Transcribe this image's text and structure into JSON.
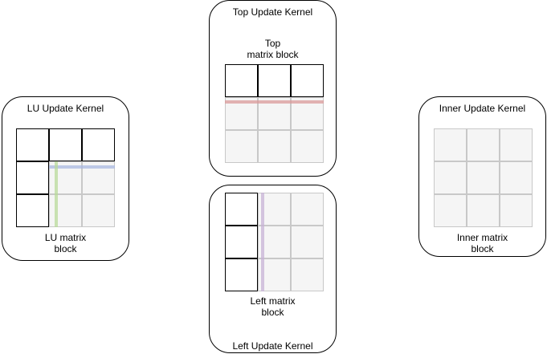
{
  "panels": {
    "lu": {
      "title": "LU Update Kernel",
      "label": "LU matrix\nblock"
    },
    "top": {
      "title": "Top Update Kernel",
      "label": "Top\nmatrix block"
    },
    "left": {
      "title": "Left Update Kernel",
      "label": "Left matrix\nblock"
    },
    "inner": {
      "title": "Inner Update Kernel",
      "label": "Inner matrix\nblock"
    }
  },
  "colors": {
    "cell_white": "#ffffff",
    "cell_gray": "#f5f5f5",
    "panel_border": "#000000",
    "lu_row_line": "#a9b8e0",
    "lu_col_line": "#b8d99a",
    "top_line": "#d99a9a",
    "left_line": "#c7b1d6"
  }
}
